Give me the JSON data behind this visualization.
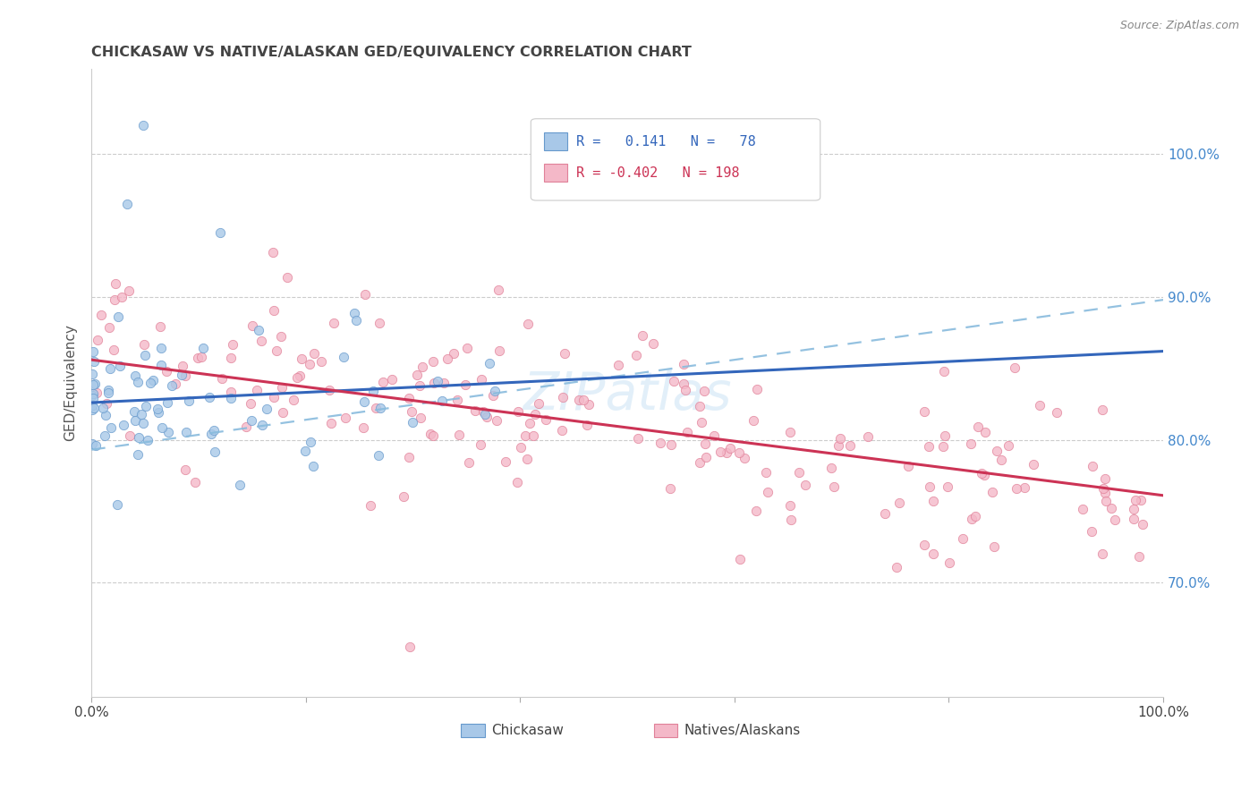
{
  "title": "CHICKASAW VS NATIVE/ALASKAN GED/EQUIVALENCY CORRELATION CHART",
  "source": "Source: ZipAtlas.com",
  "ylabel": "GED/Equivalency",
  "xlim": [
    0.0,
    1.0
  ],
  "ylim": [
    0.62,
    1.06
  ],
  "ytick_values": [
    0.7,
    0.8,
    0.9,
    1.0
  ],
  "ytick_labels": [
    "70.0%",
    "80.0%",
    "90.0%",
    "100.0%"
  ],
  "xtick_values": [
    0.0,
    0.2,
    0.4,
    0.6,
    0.8,
    1.0
  ],
  "xtick_labels": [
    "0.0%",
    "",
    "",
    "",
    "",
    "100.0%"
  ],
  "legend_line1": "R =   0.141   N =   78",
  "legend_line2": "R = -0.402   N = 198",
  "blue_scatter_color": "#a8c8e8",
  "blue_scatter_edge": "#6699cc",
  "pink_scatter_color": "#f4b8c8",
  "pink_scatter_edge": "#e08098",
  "blue_line_color": "#3366bb",
  "pink_line_color": "#cc3355",
  "dash_line_color": "#88bbdd",
  "grid_color": "#cccccc",
  "watermark": "ZIPatlas",
  "title_color": "#444444",
  "source_color": "#888888",
  "yaxis_label_color": "#555555",
  "right_ytick_color": "#4488cc",
  "bottom_label_color": "#444444"
}
